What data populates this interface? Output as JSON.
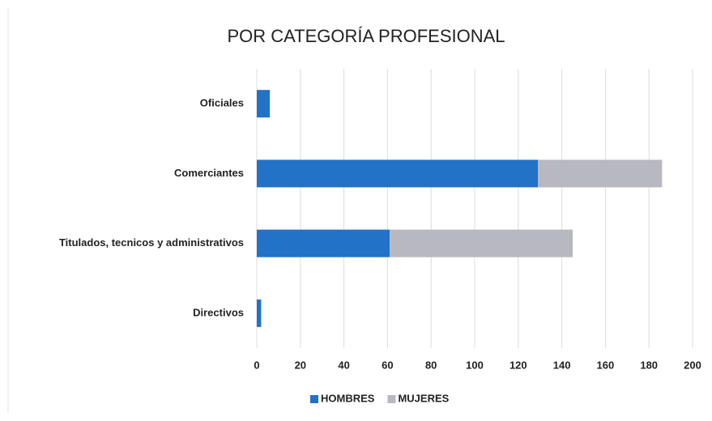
{
  "chart_data": {
    "type": "bar",
    "orientation": "horizontal",
    "stacked": true,
    "title": "POR CATEGORÍA PROFESIONAL",
    "categories": [
      "Oficiales",
      "Comerciantes",
      "Titulados, tecnicos y administrativos",
      "Directivos"
    ],
    "series": [
      {
        "name": "HOMBRES",
        "color": "#2272c8",
        "values": [
          6,
          129,
          61,
          2
        ]
      },
      {
        "name": "MUJERES",
        "color": "#b8b8c0",
        "values": [
          0,
          57,
          84,
          0
        ]
      }
    ],
    "xlim": [
      0,
      200
    ],
    "xticks": [
      0,
      20,
      40,
      60,
      80,
      100,
      120,
      140,
      160,
      180,
      200
    ],
    "grid": true,
    "legend": "bottom"
  }
}
